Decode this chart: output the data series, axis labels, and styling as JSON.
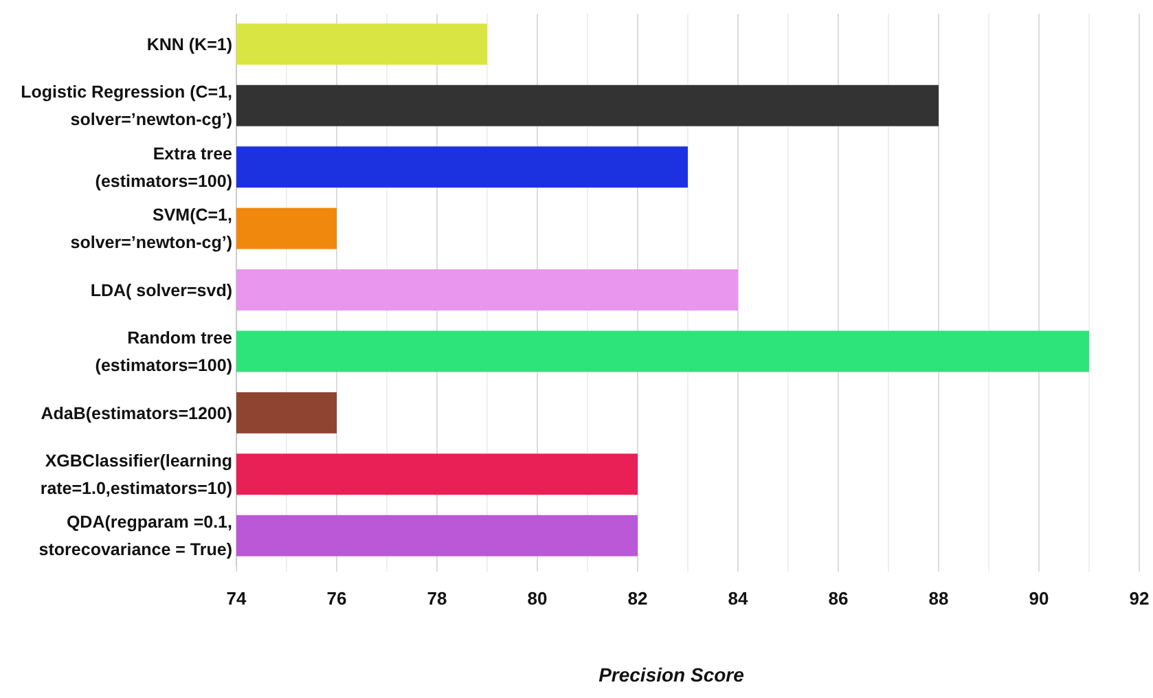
{
  "chart_data": {
    "type": "bar",
    "orientation": "horizontal",
    "xlabel": "Precision Score",
    "categories": [
      "KNN (K=1)",
      "Logistic Regression (C=1,\nsolver=’newton-cg’)",
      "Extra tree\n(estimators=100)",
      "SVM(C=1,\nsolver=’newton-cg’)",
      "LDA( solver=svd)",
      "Random tree\n(estimators=100)",
      "AdaB(estimators=1200)",
      "XGBClassifier(learning\nrate=1.0,estimators=10)",
      "QDA(regparam =0.1,\nstorecovariance = True)"
    ],
    "values": [
      79,
      88,
      83,
      76,
      84,
      91,
      76,
      82,
      82
    ],
    "colors": [
      "#d9e542",
      "#333333",
      "#1c32e0",
      "#f0880e",
      "#e896ee",
      "#2de47a",
      "#8e4430",
      "#e92055",
      "#bb58d8"
    ],
    "xlim": [
      74,
      92
    ],
    "xticks": [
      74,
      {
        "value": 75,
        "label": null
      },
      76,
      {
        "value": 77,
        "label": null
      },
      78,
      {
        "value": 79,
        "label": null
      },
      80,
      {
        "value": 81,
        "label": null
      },
      82,
      {
        "value": 83,
        "label": null
      },
      84,
      {
        "value": 85,
        "label": null
      },
      86,
      {
        "value": 87,
        "label": null
      },
      88,
      {
        "value": 89,
        "label": null
      },
      90,
      {
        "value": 91,
        "label": null
      },
      92
    ],
    "grid": "x"
  }
}
